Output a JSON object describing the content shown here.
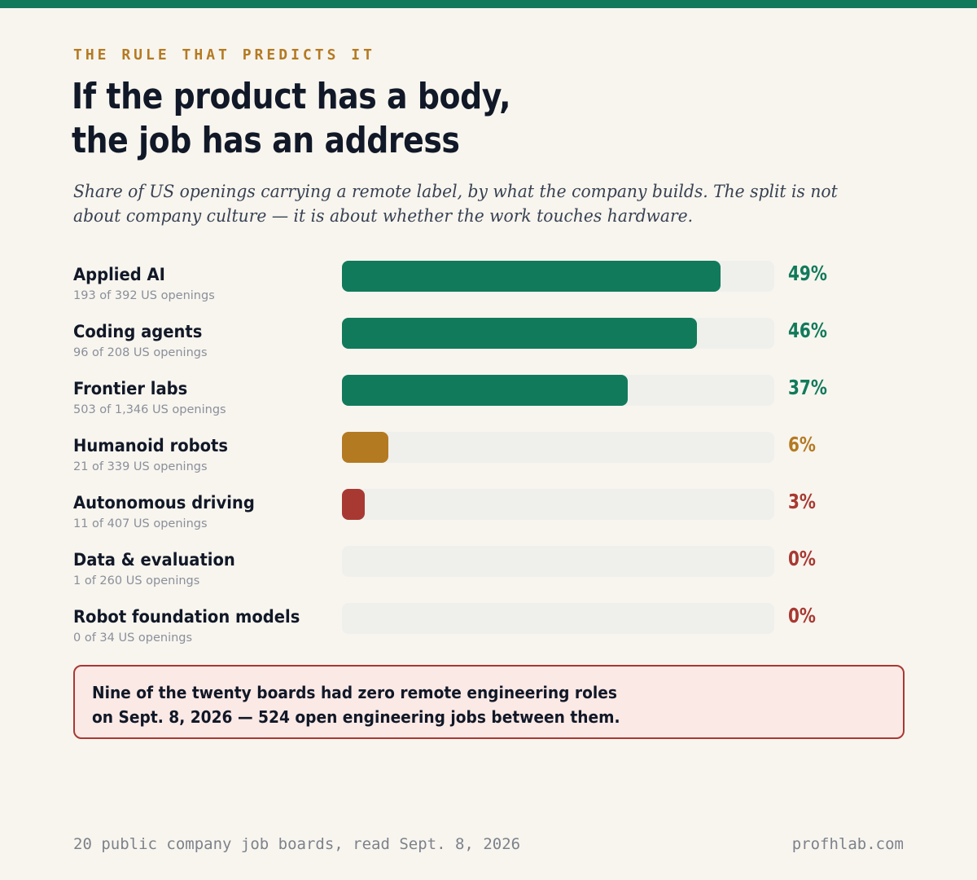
{
  "eyebrow": "THE RULE THAT PREDICTS IT",
  "title_lines": [
    "If the product has a body,",
    "the job has an address"
  ],
  "subtitle": "Share of US openings carrying a remote label, by what the company builds. The split is not about company culture — it is about whether the work touches hardware.",
  "colors": {
    "brand": "#117a5b",
    "accent": "#b47a22",
    "alert": "#a83932",
    "background": "#f8f5ef",
    "track": "#eff0ec"
  },
  "chart_data": {
    "type": "bar",
    "orientation": "horizontal",
    "xlim": [
      0,
      56
    ],
    "rows": [
      {
        "category": "Applied AI",
        "detail": "193 of 392 US openings",
        "value": 49,
        "label": "49%",
        "color": "#117a5b"
      },
      {
        "category": "Coding agents",
        "detail": "96 of 208 US openings",
        "value": 46,
        "label": "46%",
        "color": "#117a5b"
      },
      {
        "category": "Frontier labs",
        "detail": "503 of 1,346 US openings",
        "value": 37,
        "label": "37%",
        "color": "#117a5b"
      },
      {
        "category": "Humanoid robots",
        "detail": "21 of 339 US openings",
        "value": 6,
        "label": "6%",
        "color": "#b47a22"
      },
      {
        "category": "Autonomous driving",
        "detail": "11 of 407 US openings",
        "value": 3,
        "label": "3%",
        "color": "#a83932"
      },
      {
        "category": "Data & evaluation",
        "detail": "1 of 260 US openings",
        "value": 0,
        "label": "0%",
        "color": "#a83932"
      },
      {
        "category": "Robot foundation models",
        "detail": "0 of 34 US openings",
        "value": 0,
        "label": "0%",
        "color": "#a83932"
      }
    ]
  },
  "callout_lines": [
    "Nine of the twenty boards had zero remote engineering roles",
    "on Sept. 8, 2026 — 524 open engineering jobs between them."
  ],
  "footer": {
    "source": "20 public company job boards, read Sept. 8, 2026",
    "site": "profhlab.com"
  }
}
